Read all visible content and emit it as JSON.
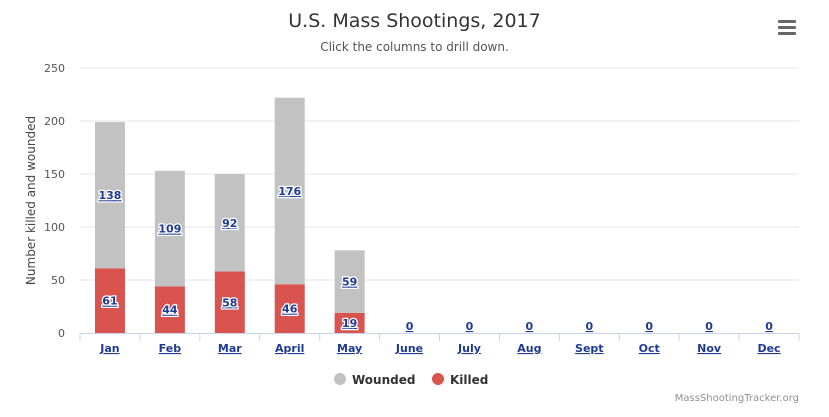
{
  "title": "U.S. Mass Shootings, 2017",
  "subtitle": "Click the columns to drill down.",
  "credits": "MassShootingTracker.org",
  "menu_icon": "hamburger-menu-icon",
  "chart_data": {
    "type": "bar",
    "stacked": true,
    "categories": [
      "Jan",
      "Feb",
      "Mar",
      "April",
      "May",
      "June",
      "July",
      "Aug",
      "Sept",
      "Oct",
      "Nov",
      "Dec"
    ],
    "series": [
      {
        "name": "Wounded",
        "color": "#c2c2c2",
        "values": [
          138,
          109,
          92,
          176,
          59,
          0,
          0,
          0,
          0,
          0,
          0,
          0
        ]
      },
      {
        "name": "Killed",
        "color": "#d9534f",
        "values": [
          61,
          44,
          58,
          46,
          19,
          0,
          0,
          0,
          0,
          0,
          0,
          0
        ]
      }
    ],
    "ylabel": "Number killed and wounded",
    "ylim": [
      0,
      250
    ],
    "yticks": [
      0,
      50,
      100,
      150,
      200,
      250
    ],
    "grid": true,
    "legend_position": "bottom-center",
    "label_color": "#1f3a93"
  }
}
